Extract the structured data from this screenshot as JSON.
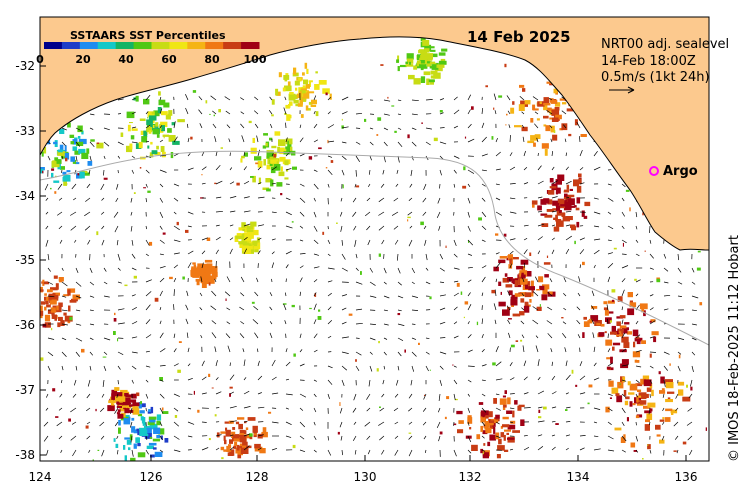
{
  "map": {
    "date_label": "14 Feb 2025",
    "legend": {
      "title": "SSTAARS SST Percentiles",
      "ticks": [
        "0",
        "20",
        "40",
        "60",
        "80",
        "100"
      ],
      "colors": [
        "#00008b",
        "#1e3cc8",
        "#1e8cf0",
        "#14c8c8",
        "#14b464",
        "#50c814",
        "#c8dc14",
        "#f0e614",
        "#f5b414",
        "#f07814",
        "#c83c14",
        "#a00014"
      ]
    },
    "annotation": {
      "product": "NRT00 adj. sealevel",
      "time": "14-Feb 18:00Z",
      "scale": "0.5m/s (1kt 24h)"
    },
    "argo_label": "Argo",
    "credit": "© IMOS 18-Feb-2025 11:12 Hobart",
    "longitudes": [
      "124",
      "126",
      "128",
      "130",
      "132",
      "134",
      "136"
    ],
    "latitudes": [
      "-32",
      "-33",
      "-34",
      "-35",
      "-36",
      "-37",
      "-38"
    ],
    "colors": {
      "land": "#fcc98e",
      "ocean": "#ffffff",
      "argo": "#ff00ff",
      "shelf_contour": "#aaaaaa"
    }
  }
}
